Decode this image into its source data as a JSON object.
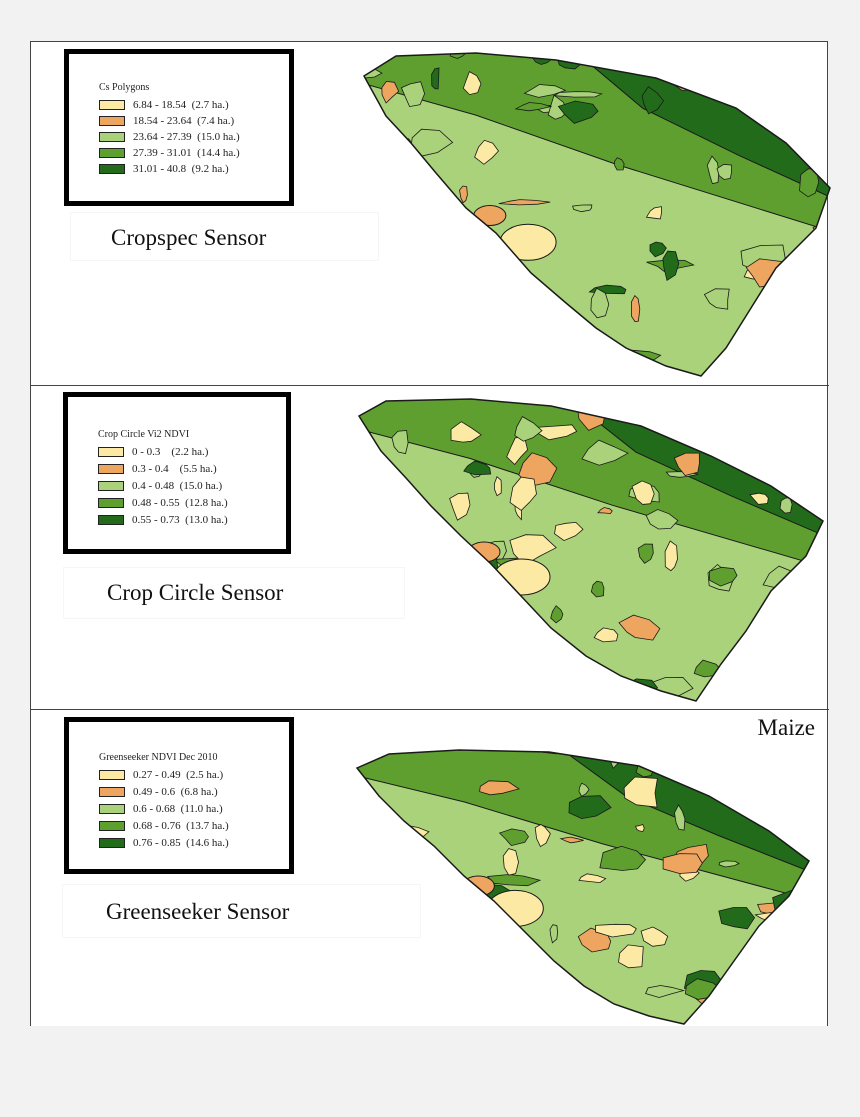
{
  "colors": {
    "class1": "#fce9a3",
    "class2": "#eda55f",
    "class3": "#a9d27a",
    "class4": "#5f9f2f",
    "class5": "#226b1a",
    "outline": "#1a1a1a"
  },
  "panels": [
    {
      "legend": {
        "title": "Cs Polygons",
        "items": [
          {
            "range": "6.84 - 18.54",
            "area": "(2.7 ha.)"
          },
          {
            "range": "18.54 - 23.64",
            "area": "(7.4 ha.)"
          },
          {
            "range": "23.64 - 27.39",
            "area": "(15.0 ha.)"
          },
          {
            "range": "27.39 - 31.01",
            "area": "(14.4 ha.)"
          },
          {
            "range": "31.01 - 40.8",
            "area": "(9.2 ha.)"
          }
        ]
      },
      "sensor_label": "Cropspec Sensor"
    },
    {
      "legend": {
        "title": "Crop Circle Vi2 NDVI",
        "items": [
          {
            "range": "0 - 0.3",
            "area": "(2.2 ha.)"
          },
          {
            "range": "0.3 - 0.4",
            "area": "(5.5 ha.)"
          },
          {
            "range": "0.4 - 0.48",
            "area": "(15.0 ha.)"
          },
          {
            "range": "0.48 - 0.55",
            "area": "(12.8 ha.)"
          },
          {
            "range": "0.55 - 0.73",
            "area": "(13.0 ha.)"
          }
        ]
      },
      "sensor_label": "Crop Circle Sensor"
    },
    {
      "legend": {
        "title": "Greenseeker NDVI Dec 2010",
        "items": [
          {
            "range": "0.27 - 0.49",
            "area": "(2.5 ha.)"
          },
          {
            "range": "0.49 - 0.6",
            "area": "(6.8 ha.)"
          },
          {
            "range": "0.6 - 0.68",
            "area": "(11.0 ha.)"
          },
          {
            "range": "0.68 - 0.76",
            "area": "(13.7 ha.)"
          },
          {
            "range": "0.76 - 0.85",
            "area": "(14.6 ha.)"
          }
        ]
      },
      "sensor_label": "Greenseeker Sensor"
    }
  ],
  "crop_label": "Maize"
}
